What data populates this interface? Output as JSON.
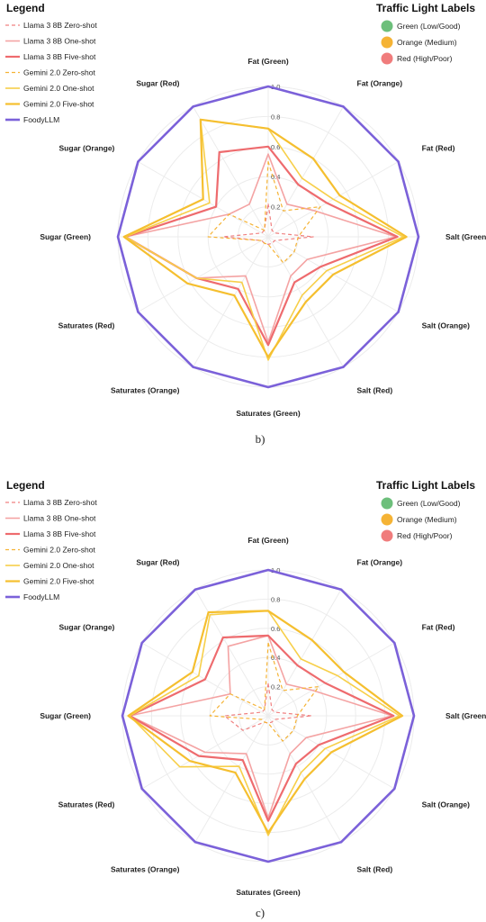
{
  "legend_title": "Legend",
  "traffic_title": "Traffic Light Labels",
  "legend_items": [
    {
      "label": "Llama 3 8B Zero-shot",
      "color": "#f08080",
      "dash": "4,3",
      "width": 1.2
    },
    {
      "label": "Llama 3 8B One-shot",
      "color": "#f4a3a3",
      "dash": "",
      "width": 1.6
    },
    {
      "label": "Llama 3 8B Five-shot",
      "color": "#ee6b6e",
      "dash": "",
      "width": 2.2
    },
    {
      "label": "Gemini 2.0 Zero-shot",
      "color": "#f5b335",
      "dash": "4,3",
      "width": 1.2
    },
    {
      "label": "Gemini 2.0 One-shot",
      "color": "#f7cf4a",
      "dash": "",
      "width": 1.6
    },
    {
      "label": "Gemini 2.0 Five-shot",
      "color": "#f5bf2f",
      "dash": "",
      "width": 2.2
    },
    {
      "label": "FoodyLLM",
      "color": "#7b61d9",
      "dash": "",
      "width": 2.6
    }
  ],
  "traffic_items": [
    {
      "label": "Green (Low/Good)",
      "color": "#6dbf7b"
    },
    {
      "label": "Orange (Medium)",
      "color": "#f5b335"
    },
    {
      "label": "Red (High/Poor)",
      "color": "#f07c7c"
    }
  ],
  "chart_data": [
    {
      "type": "radar",
      "caption": "b)",
      "axes": [
        "Fat (Green)",
        "Fat (Orange)",
        "Fat (Red)",
        "Salt (Green)",
        "Salt (Orange)",
        "Salt (Red)",
        "Saturates (Green)",
        "Saturates (Orange)",
        "Saturates (Red)",
        "Sugar (Green)",
        "Sugar (Orange)",
        "Sugar (Red)"
      ],
      "ticks": [
        "0.2",
        "0.4",
        "0.6",
        "0.8",
        "1.0"
      ],
      "rlim": [
        0,
        1
      ],
      "series": [
        {
          "name": "Llama 3 8B Zero-shot",
          "values": [
            0.22,
            0.05,
            0.05,
            0.3,
            0.05,
            0.05,
            0.05,
            0.05,
            0.05,
            0.3,
            0.05,
            0.05
          ]
        },
        {
          "name": "Llama 3 8B One-shot",
          "values": [
            0.55,
            0.25,
            0.35,
            0.85,
            0.3,
            0.3,
            0.7,
            0.3,
            0.55,
            0.95,
            0.3,
            0.25
          ]
        },
        {
          "name": "Llama 3 8B Five-shot",
          "values": [
            0.6,
            0.4,
            0.45,
            0.86,
            0.4,
            0.35,
            0.72,
            0.4,
            0.55,
            0.95,
            0.4,
            0.65
          ]
        },
        {
          "name": "Gemini 2.0 Zero-shot",
          "values": [
            0.5,
            0.2,
            0.4,
            0.2,
            0.2,
            0.2,
            0.05,
            0.05,
            0.05,
            0.4,
            0.3,
            0.05
          ]
        },
        {
          "name": "Gemini 2.0 One-shot",
          "values": [
            0.72,
            0.45,
            0.5,
            0.9,
            0.45,
            0.45,
            0.82,
            0.35,
            0.55,
            0.95,
            0.45,
            0.9
          ]
        },
        {
          "name": "Gemini 2.0 Five-shot",
          "values": [
            0.72,
            0.6,
            0.55,
            0.92,
            0.5,
            0.5,
            0.8,
            0.45,
            0.62,
            0.96,
            0.5,
            0.9
          ]
        },
        {
          "name": "FoodyLLM",
          "values": [
            1,
            1,
            1,
            1,
            1,
            1,
            1,
            1,
            1,
            1,
            1,
            1
          ]
        }
      ]
    },
    {
      "type": "radar",
      "caption": "c)",
      "axes": [
        "Fat (Green)",
        "Fat (Orange)",
        "Fat (Red)",
        "Salt (Green)",
        "Salt (Orange)",
        "Salt (Red)",
        "Saturates (Green)",
        "Saturates (Orange)",
        "Saturates (Red)",
        "Sugar (Green)",
        "Sugar (Orange)",
        "Sugar (Red)"
      ],
      "ticks": [
        "0.2",
        "0.4",
        "0.6",
        "0.8",
        "1.0"
      ],
      "rlim": [
        0,
        1
      ],
      "series": [
        {
          "name": "Llama 3 8B Zero-shot",
          "values": [
            0.22,
            0.05,
            0.05,
            0.3,
            0.05,
            0.05,
            0.05,
            0.05,
            0.2,
            0.3,
            0.05,
            0.05
          ]
        },
        {
          "name": "Llama 3 8B One-shot",
          "values": [
            0.55,
            0.25,
            0.35,
            0.85,
            0.3,
            0.3,
            0.7,
            0.3,
            0.5,
            0.95,
            0.3,
            0.55
          ]
        },
        {
          "name": "Llama 3 8B Five-shot",
          "values": [
            0.55,
            0.4,
            0.45,
            0.86,
            0.4,
            0.38,
            0.72,
            0.35,
            0.55,
            0.95,
            0.5,
            0.62
          ]
        },
        {
          "name": "Gemini 2.0 Zero-shot",
          "values": [
            0.5,
            0.2,
            0.4,
            0.2,
            0.2,
            0.2,
            0.05,
            0.05,
            0.05,
            0.4,
            0.3,
            0.05
          ]
        },
        {
          "name": "Gemini 2.0 One-shot",
          "values": [
            0.72,
            0.45,
            0.55,
            0.9,
            0.45,
            0.45,
            0.82,
            0.4,
            0.7,
            0.95,
            0.55,
            0.8
          ]
        },
        {
          "name": "Gemini 2.0 Five-shot",
          "values": [
            0.72,
            0.6,
            0.6,
            0.92,
            0.5,
            0.5,
            0.8,
            0.45,
            0.62,
            0.96,
            0.6,
            0.82
          ]
        },
        {
          "name": "FoodyLLM",
          "values": [
            1,
            1,
            1,
            1,
            1,
            1,
            1,
            1,
            1,
            1,
            1,
            1
          ]
        }
      ]
    }
  ]
}
